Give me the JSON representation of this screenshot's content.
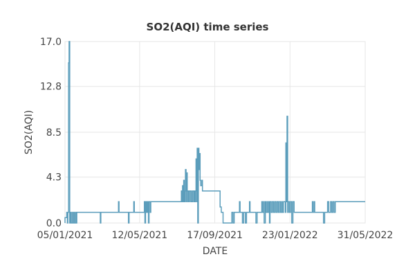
{
  "chart_data": {
    "type": "line",
    "title": "SO2(AQI) time series",
    "xlabel": "DATE",
    "ylabel": "SO2(AQI)",
    "x_ticks": [
      "05/01/2021",
      "12/05/2021",
      "17/09/2021",
      "23/01/2022",
      "31/05/2022"
    ],
    "x_range": [
      "05/01/2021",
      "31/05/2022"
    ],
    "y_ticks": [
      "0.0",
      "4.3",
      "8.5",
      "12.8",
      "17.0"
    ],
    "ylim": [
      0,
      17
    ],
    "grid": true,
    "line_color": "#5b9dbb",
    "series": [
      {
        "name": "",
        "points": [
          [
            "2020-12-31",
            0.0
          ],
          [
            "2021-01-02",
            0.2
          ],
          [
            "2021-01-05",
            0.5
          ],
          [
            "2021-01-08",
            1.0
          ],
          [
            "2021-01-09",
            0.0
          ],
          [
            "2021-01-10",
            1.0
          ],
          [
            "2021-01-11",
            15.0
          ],
          [
            "2021-01-12",
            17.0
          ],
          [
            "2021-01-13",
            0.0
          ],
          [
            "2021-01-14",
            1.0
          ],
          [
            "2021-01-15",
            0.0
          ],
          [
            "2021-01-17",
            1.0
          ],
          [
            "2021-01-18",
            0.0
          ],
          [
            "2021-01-20",
            1.0
          ],
          [
            "2021-01-21",
            0.0
          ],
          [
            "2021-01-23",
            1.0
          ],
          [
            "2021-01-24",
            0.0
          ],
          [
            "2021-01-25",
            1.0
          ],
          [
            "2021-03-05",
            1.0
          ],
          [
            "2021-03-06",
            0.0
          ],
          [
            "2021-03-07",
            1.0
          ],
          [
            "2021-04-05",
            1.0
          ],
          [
            "2021-04-06",
            2.0
          ],
          [
            "2021-04-07",
            1.0
          ],
          [
            "2021-04-22",
            1.0
          ],
          [
            "2021-04-23",
            0.0
          ],
          [
            "2021-04-24",
            1.0
          ],
          [
            "2021-05-01",
            1.0
          ],
          [
            "2021-05-02",
            2.0
          ],
          [
            "2021-05-03",
            1.0
          ],
          [
            "2021-05-19",
            1.0
          ],
          [
            "2021-05-20",
            2.0
          ],
          [
            "2021-05-21",
            0.0
          ],
          [
            "2021-05-22",
            2.0
          ],
          [
            "2021-05-23",
            1.0
          ],
          [
            "2021-05-24",
            2.0
          ],
          [
            "2021-05-25",
            1.0
          ],
          [
            "2021-05-26",
            2.0
          ],
          [
            "2021-05-27",
            0.0
          ],
          [
            "2021-05-28",
            2.0
          ],
          [
            "2021-05-30",
            1.0
          ],
          [
            "2021-05-31",
            2.0
          ],
          [
            "2021-07-20",
            2.0
          ],
          [
            "2021-07-22",
            3.0
          ],
          [
            "2021-07-23",
            2.0
          ],
          [
            "2021-07-24",
            3.5
          ],
          [
            "2021-07-25",
            2.0
          ],
          [
            "2021-07-26",
            4.0
          ],
          [
            "2021-07-27",
            2.0
          ],
          [
            "2021-07-28",
            3.0
          ],
          [
            "2021-07-29",
            5.0
          ],
          [
            "2021-07-30",
            2.0
          ],
          [
            "2021-07-31",
            4.7
          ],
          [
            "2021-08-01",
            3.0
          ],
          [
            "2021-08-02",
            2.0
          ],
          [
            "2021-08-03",
            3.0
          ],
          [
            "2021-08-05",
            2.0
          ],
          [
            "2021-08-06",
            3.0
          ],
          [
            "2021-08-08",
            2.0
          ],
          [
            "2021-08-10",
            3.0
          ],
          [
            "2021-08-12",
            2.0
          ],
          [
            "2021-08-13",
            3.0
          ],
          [
            "2021-08-14",
            2.0
          ],
          [
            "2021-08-15",
            3.0
          ],
          [
            "2021-08-16",
            6.0
          ],
          [
            "2021-08-17",
            2.0
          ],
          [
            "2021-08-18",
            7.0
          ],
          [
            "2021-08-19",
            0.0
          ],
          [
            "2021-08-20",
            7.0
          ],
          [
            "2021-08-21",
            5.0
          ],
          [
            "2021-08-22",
            6.5
          ],
          [
            "2021-08-23",
            4.0
          ],
          [
            "2021-08-24",
            3.5
          ],
          [
            "2021-08-26",
            4.0
          ],
          [
            "2021-08-27",
            3.0
          ],
          [
            "2021-09-25",
            3.0
          ],
          [
            "2021-09-26",
            1.5
          ],
          [
            "2021-09-28",
            1.0
          ],
          [
            "2021-10-01",
            0.0
          ],
          [
            "2021-10-15",
            0.0
          ],
          [
            "2021-10-16",
            1.0
          ],
          [
            "2021-10-18",
            0.0
          ],
          [
            "2021-10-20",
            1.0
          ],
          [
            "2021-10-28",
            1.0
          ],
          [
            "2021-10-29",
            2.0
          ],
          [
            "2021-10-30",
            1.0
          ],
          [
            "2021-11-02",
            1.0
          ],
          [
            "2021-11-03",
            0.0
          ],
          [
            "2021-11-05",
            1.0
          ],
          [
            "2021-11-08",
            0.0
          ],
          [
            "2021-11-10",
            1.0
          ],
          [
            "2021-11-15",
            2.0
          ],
          [
            "2021-11-16",
            1.0
          ],
          [
            "2021-11-25",
            1.0
          ],
          [
            "2021-11-26",
            0.0
          ],
          [
            "2021-11-28",
            1.0
          ],
          [
            "2021-12-05",
            1.0
          ],
          [
            "2021-12-06",
            2.0
          ],
          [
            "2021-12-07",
            1.0
          ],
          [
            "2021-12-09",
            2.0
          ],
          [
            "2021-12-10",
            0.0
          ],
          [
            "2021-12-12",
            2.0
          ],
          [
            "2021-12-13",
            1.0
          ],
          [
            "2021-12-15",
            2.0
          ],
          [
            "2021-12-16",
            1.0
          ],
          [
            "2021-12-18",
            2.0
          ],
          [
            "2021-12-19",
            0.0
          ],
          [
            "2021-12-20",
            2.0
          ],
          [
            "2021-12-22",
            1.0
          ],
          [
            "2021-12-24",
            2.0
          ],
          [
            "2021-12-26",
            1.0
          ],
          [
            "2021-12-28",
            2.0
          ],
          [
            "2021-12-30",
            1.0
          ],
          [
            "2022-01-01",
            2.0
          ],
          [
            "2022-01-03",
            1.0
          ],
          [
            "2022-01-05",
            2.0
          ],
          [
            "2022-01-07",
            1.0
          ],
          [
            "2022-01-09",
            2.0
          ],
          [
            "2022-01-10",
            1.0
          ],
          [
            "2022-01-12",
            2.0
          ],
          [
            "2022-01-15",
            1.0
          ],
          [
            "2022-01-16",
            7.5
          ],
          [
            "2022-01-17",
            2.0
          ],
          [
            "2022-01-18",
            10.0
          ],
          [
            "2022-01-19",
            1.0
          ],
          [
            "2022-01-20",
            2.0
          ],
          [
            "2022-01-22",
            1.0
          ],
          [
            "2022-01-24",
            2.0
          ],
          [
            "2022-01-26",
            0.0
          ],
          [
            "2022-01-28",
            2.0
          ],
          [
            "2022-01-30",
            1.0
          ],
          [
            "2022-03-01",
            1.0
          ],
          [
            "2022-03-02",
            2.0
          ],
          [
            "2022-03-03",
            1.0
          ],
          [
            "2022-03-05",
            2.0
          ],
          [
            "2022-03-06",
            1.0
          ],
          [
            "2022-03-20",
            1.0
          ],
          [
            "2022-03-21",
            0.0
          ],
          [
            "2022-03-23",
            1.0
          ],
          [
            "2022-03-27",
            1.0
          ],
          [
            "2022-03-28",
            2.0
          ],
          [
            "2022-03-30",
            1.0
          ],
          [
            "2022-04-01",
            1.0
          ],
          [
            "2022-04-02",
            2.0
          ],
          [
            "2022-04-04",
            1.0
          ],
          [
            "2022-04-06",
            2.0
          ],
          [
            "2022-04-08",
            1.0
          ],
          [
            "2022-04-10",
            2.0
          ],
          [
            "2022-05-31",
            2.0
          ]
        ]
      }
    ]
  }
}
